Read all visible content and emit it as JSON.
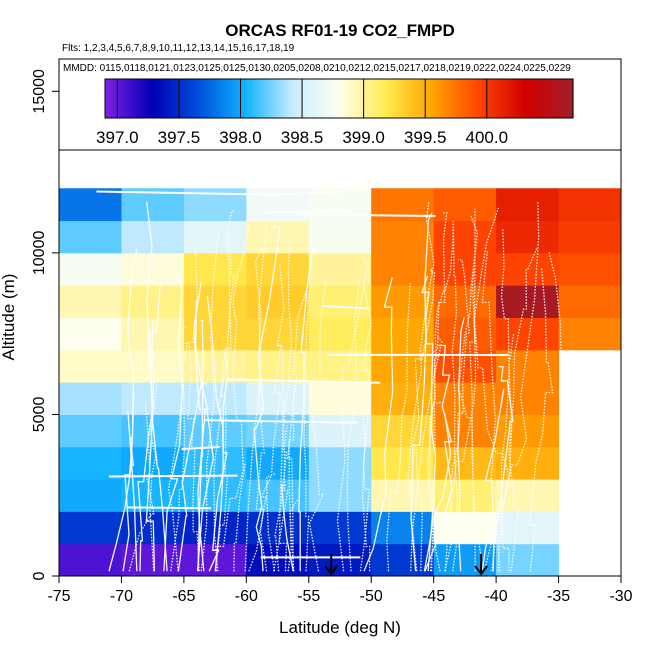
{
  "chart_data": {
    "type": "heatmap",
    "title": "ORCAS RF01-19 CO2_FMPD",
    "flights_text": "Flts: 1,2,3,4,5,6,7,8,9,10,11,12,13,14,15,16,17,18,19",
    "dates_text": "MMDD: 0115,0118,0121,0123,0125,0125,0130,0205,0208,0210,0212,0215,0217,0218,0219,0222,0224,0225,0229",
    "xlabel": "Latitude (deg N)",
    "ylabel": "Altitude (m)",
    "xlim": [
      -75,
      -30
    ],
    "ylim": [
      0,
      16000
    ],
    "x_ticks": [
      -75,
      -70,
      -65,
      -60,
      -55,
      -50,
      -45,
      -40,
      -35,
      -30
    ],
    "x_tick_labels": [
      "-75",
      "-70",
      "-65",
      "-60",
      "-55",
      "-50",
      "-45",
      "-40",
      "-35",
      "-30"
    ],
    "y_ticks": [
      0,
      5000,
      10000,
      15000
    ],
    "y_tick_labels": [
      "0",
      "5000",
      "10000",
      "15000"
    ],
    "colorbar": {
      "range": [
        396.9,
        400.7
      ],
      "ticks": [
        397.0,
        397.5,
        398.0,
        398.5,
        399.0,
        399.5,
        400.0
      ],
      "tick_labels": [
        "397.0",
        "397.5",
        "398.0",
        "398.5",
        "399.0",
        "399.5",
        "400.0"
      ],
      "stops": [
        "#7f1fe6",
        "#0000b4",
        "#0050dc",
        "#12b4ff",
        "#c8ecff",
        "#fffff0",
        "#ffeb50",
        "#ffa500",
        "#ff4600",
        "#d20000",
        "#a01e28"
      ]
    },
    "lat_bins": [
      -75,
      -70,
      -65,
      -60,
      -55,
      -50,
      -45,
      -40,
      -35,
      -30
    ],
    "alt_bins": [
      0,
      1000,
      2000,
      3000,
      4000,
      5000,
      6000,
      7000,
      8000,
      9000,
      10000,
      11000,
      12000
    ],
    "cell_values": [
      [
        397.05,
        397.0,
        397.0,
        397.35,
        397.4,
        397.55,
        397.95,
        398.25,
        null
      ],
      [
        397.55,
        397.5,
        397.45,
        397.5,
        397.55,
        397.85,
        398.8,
        398.6,
        null
      ],
      [
        398.0,
        398.05,
        398.1,
        398.15,
        398.3,
        398.95,
        399.1,
        398.95,
        null
      ],
      [
        398.05,
        398.0,
        398.1,
        398.0,
        398.3,
        399.2,
        399.45,
        399.5,
        null
      ],
      [
        398.2,
        398.15,
        398.2,
        398.25,
        398.55,
        399.3,
        399.7,
        399.6,
        null
      ],
      [
        398.35,
        398.4,
        398.4,
        398.55,
        398.85,
        399.5,
        399.7,
        399.7,
        null
      ],
      [
        398.9,
        398.9,
        399.0,
        399.05,
        399.05,
        399.55,
        399.9,
        399.7,
        null
      ],
      [
        398.8,
        398.95,
        399.3,
        399.3,
        399.15,
        399.55,
        399.85,
        399.95,
        399.7
      ],
      [
        398.95,
        399.05,
        399.3,
        399.35,
        399.1,
        399.6,
        399.8,
        400.65,
        399.8
      ],
      [
        398.75,
        398.85,
        399.2,
        399.3,
        399.0,
        399.7,
        399.95,
        399.95,
        399.9
      ],
      [
        398.2,
        398.4,
        398.6,
        398.95,
        398.75,
        399.7,
        399.95,
        400.1,
        400.0
      ],
      [
        397.8,
        398.2,
        398.3,
        398.7,
        398.75,
        399.75,
        399.85,
        400.15,
        400.05
      ]
    ],
    "markers": [
      {
        "name": "arrow-marker-1",
        "lat": -53.2,
        "alt": 0
      },
      {
        "name": "arrow-marker-2",
        "lat": -41.2,
        "alt": 0
      }
    ]
  }
}
